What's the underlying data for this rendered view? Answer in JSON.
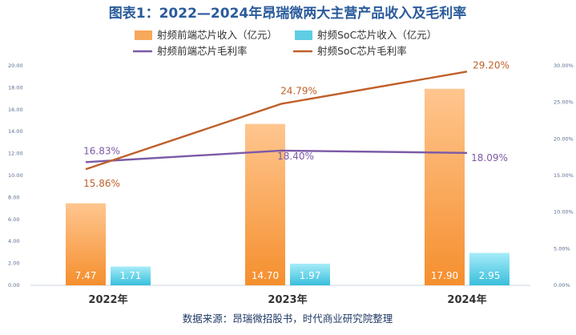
{
  "chart_data": {
    "type": "bar",
    "title": "图表1：2022—2024年昂瑞微两大主营产品收入及毛利率",
    "categories": [
      "2022年",
      "2023年",
      "2024年"
    ],
    "series": [
      {
        "name": "射频前端芯片收入（亿元）",
        "kind": "bar",
        "axis": "left",
        "color": "#f7a85b",
        "values": [
          7.47,
          14.7,
          17.9
        ],
        "labels": [
          "7.47",
          "14.70",
          "17.90"
        ]
      },
      {
        "name": "射频SoC芯片收入（亿元）",
        "kind": "bar",
        "axis": "left",
        "color": "#5fcde4",
        "values": [
          1.71,
          1.97,
          2.95
        ],
        "labels": [
          "1.71",
          "1.97",
          "2.95"
        ]
      },
      {
        "name": "射频前端芯片毛利率",
        "kind": "line",
        "axis": "right",
        "color": "#7b5aa6",
        "values": [
          16.83,
          18.4,
          18.09
        ],
        "labels": [
          "16.83%",
          "18.40%",
          "18.09%"
        ]
      },
      {
        "name": "射频SoC芯片毛利率",
        "kind": "line",
        "axis": "right",
        "color": "#c0602a",
        "values": [
          15.86,
          24.79,
          29.2
        ],
        "labels": [
          "15.86%",
          "24.79%",
          "29.20%"
        ]
      }
    ],
    "y_left": {
      "min": 0,
      "max": 20,
      "ticks": [
        "0.00",
        "2.00",
        "4.00",
        "6.00",
        "8.00",
        "10.00",
        "12.00",
        "14.00",
        "16.00",
        "18.00",
        "20.00"
      ]
    },
    "y_right": {
      "min": 0,
      "max": 30,
      "ticks": [
        "0.00%",
        "5.00%",
        "10.00%",
        "15.00%",
        "20.00%",
        "25.00%",
        "30.00%"
      ]
    },
    "grid": false,
    "legend_position": "top",
    "source": "数据来源：昂瑞微招股书，时代商业研究院整理"
  }
}
